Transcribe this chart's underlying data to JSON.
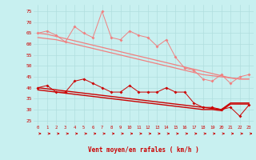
{
  "x": [
    0,
    1,
    2,
    3,
    4,
    5,
    6,
    7,
    8,
    9,
    10,
    11,
    12,
    13,
    14,
    15,
    16,
    17,
    18,
    19,
    20,
    21,
    22,
    23
  ],
  "line_upper_scattered": [
    65,
    66,
    64,
    61,
    68,
    65,
    63,
    75,
    63,
    62,
    66,
    64,
    63,
    59,
    62,
    54,
    49,
    48,
    44,
    43,
    46,
    42,
    45,
    46
  ],
  "line_upper_trend1": [
    65,
    64.5,
    63.5,
    62.5,
    61.5,
    60.5,
    59.5,
    58.5,
    57.5,
    56.5,
    55.5,
    54.5,
    53.5,
    52.5,
    51.5,
    50.5,
    49.5,
    48.5,
    47.5,
    46.5,
    45.5,
    44.5,
    44,
    44
  ],
  "line_upper_trend2": [
    63,
    62.5,
    62,
    61,
    60,
    59,
    58,
    57,
    56,
    55,
    54,
    53,
    52,
    51,
    50,
    49,
    48,
    47,
    46,
    45.5,
    45,
    44.5,
    44,
    44
  ],
  "line_lower_scattered": [
    40,
    41,
    38,
    38,
    43,
    44,
    42,
    40,
    38,
    38,
    41,
    38,
    38,
    38,
    40,
    38,
    38,
    33,
    31,
    31,
    30,
    31,
    27,
    32
  ],
  "line_lower_trend1": [
    40,
    39.5,
    39,
    38.5,
    38,
    37.5,
    37,
    36.5,
    36,
    35.5,
    35,
    34.5,
    34,
    33.5,
    33,
    32.5,
    32,
    31.5,
    31,
    30.5,
    30,
    33,
    33,
    33
  ],
  "line_lower_trend2": [
    39,
    38.5,
    38,
    37.5,
    37,
    36.5,
    36,
    35.5,
    35,
    34.5,
    34,
    33.5,
    33,
    32.5,
    32,
    31.5,
    31,
    30.5,
    30,
    30,
    29.5,
    32.5,
    32.5,
    32.5
  ],
  "color_light": "#f08080",
  "color_dark": "#cc0000",
  "background": "#c8f0f0",
  "grid_color": "#b0dede",
  "xlabel": "Vent moyen/en rafales ( km/h )",
  "yticks": [
    25,
    30,
    35,
    40,
    45,
    50,
    55,
    60,
    65,
    70,
    75
  ],
  "xticks": [
    0,
    1,
    2,
    3,
    4,
    5,
    6,
    7,
    8,
    9,
    10,
    11,
    12,
    13,
    14,
    15,
    16,
    17,
    18,
    19,
    20,
    21,
    22,
    23
  ],
  "ylim": [
    23,
    78
  ],
  "xlim": [
    -0.5,
    23.5
  ]
}
